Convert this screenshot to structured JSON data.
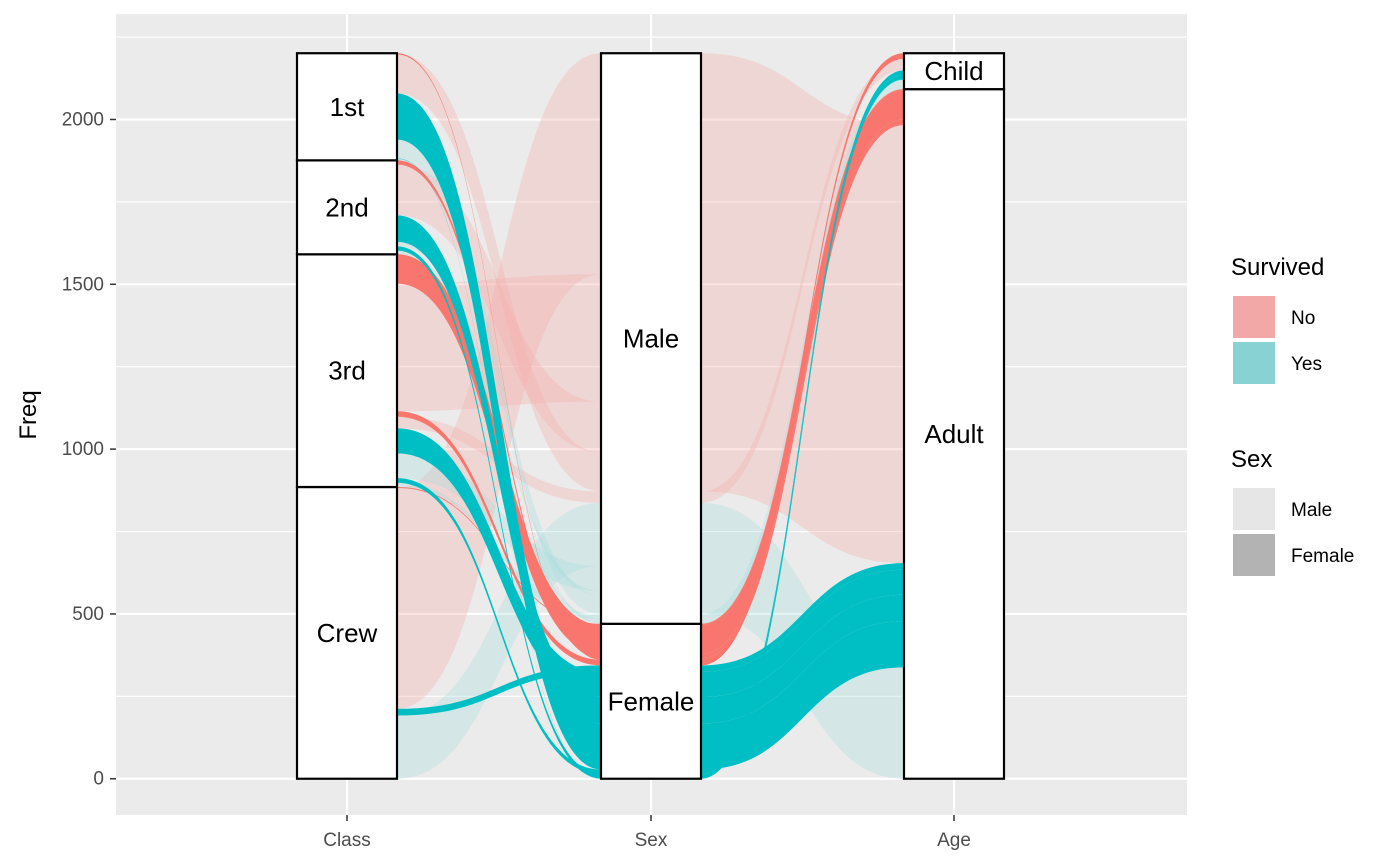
{
  "chart_data": {
    "type": "alluvial",
    "ylabel": "Freq",
    "axes": [
      "Class",
      "Sex",
      "Age"
    ],
    "y_ticks": [
      0,
      500,
      1000,
      1500,
      2000
    ],
    "ylim": [
      -110,
      2320
    ],
    "strata": {
      "Class": [
        {
          "label": "Crew",
          "value": 885
        },
        {
          "label": "3rd",
          "value": 706
        },
        {
          "label": "2nd",
          "value": 285
        },
        {
          "label": "1st",
          "value": 325
        }
      ],
      "Sex": [
        {
          "label": "Female",
          "value": 470
        },
        {
          "label": "Male",
          "value": 1731
        }
      ],
      "Age": [
        {
          "label": "Adult",
          "value": 2092
        },
        {
          "label": "Child",
          "value": 109
        }
      ]
    },
    "flows": [
      {
        "class": "1st",
        "sex": "Male",
        "age": "Child",
        "survived": "No",
        "freq": 0
      },
      {
        "class": "2nd",
        "sex": "Male",
        "age": "Child",
        "survived": "No",
        "freq": 0
      },
      {
        "class": "3rd",
        "sex": "Male",
        "age": "Child",
        "survived": "No",
        "freq": 35
      },
      {
        "class": "Crew",
        "sex": "Male",
        "age": "Child",
        "survived": "No",
        "freq": 0
      },
      {
        "class": "1st",
        "sex": "Female",
        "age": "Child",
        "survived": "No",
        "freq": 0
      },
      {
        "class": "2nd",
        "sex": "Female",
        "age": "Child",
        "survived": "No",
        "freq": 0
      },
      {
        "class": "3rd",
        "sex": "Female",
        "age": "Child",
        "survived": "No",
        "freq": 17
      },
      {
        "class": "Crew",
        "sex": "Female",
        "age": "Child",
        "survived": "No",
        "freq": 0
      },
      {
        "class": "1st",
        "sex": "Male",
        "age": "Adult",
        "survived": "No",
        "freq": 118
      },
      {
        "class": "2nd",
        "sex": "Male",
        "age": "Adult",
        "survived": "No",
        "freq": 154
      },
      {
        "class": "3rd",
        "sex": "Male",
        "age": "Adult",
        "survived": "No",
        "freq": 387
      },
      {
        "class": "Crew",
        "sex": "Male",
        "age": "Adult",
        "survived": "No",
        "freq": 670
      },
      {
        "class": "1st",
        "sex": "Female",
        "age": "Adult",
        "survived": "No",
        "freq": 4
      },
      {
        "class": "2nd",
        "sex": "Female",
        "age": "Adult",
        "survived": "No",
        "freq": 13
      },
      {
        "class": "3rd",
        "sex": "Female",
        "age": "Adult",
        "survived": "No",
        "freq": 89
      },
      {
        "class": "Crew",
        "sex": "Female",
        "age": "Adult",
        "survived": "No",
        "freq": 3
      },
      {
        "class": "1st",
        "sex": "Male",
        "age": "Child",
        "survived": "Yes",
        "freq": 5
      },
      {
        "class": "2nd",
        "sex": "Male",
        "age": "Child",
        "survived": "Yes",
        "freq": 11
      },
      {
        "class": "3rd",
        "sex": "Male",
        "age": "Child",
        "survived": "Yes",
        "freq": 13
      },
      {
        "class": "Crew",
        "sex": "Male",
        "age": "Child",
        "survived": "Yes",
        "freq": 0
      },
      {
        "class": "1st",
        "sex": "Female",
        "age": "Child",
        "survived": "Yes",
        "freq": 1
      },
      {
        "class": "2nd",
        "sex": "Female",
        "age": "Child",
        "survived": "Yes",
        "freq": 13
      },
      {
        "class": "3rd",
        "sex": "Female",
        "age": "Child",
        "survived": "Yes",
        "freq": 14
      },
      {
        "class": "Crew",
        "sex": "Female",
        "age": "Child",
        "survived": "Yes",
        "freq": 0
      },
      {
        "class": "1st",
        "sex": "Male",
        "age": "Adult",
        "survived": "Yes",
        "freq": 57
      },
      {
        "class": "2nd",
        "sex": "Male",
        "age": "Adult",
        "survived": "Yes",
        "freq": 14
      },
      {
        "class": "3rd",
        "sex": "Male",
        "age": "Adult",
        "survived": "Yes",
        "freq": 75
      },
      {
        "class": "Crew",
        "sex": "Male",
        "age": "Adult",
        "survived": "Yes",
        "freq": 192
      },
      {
        "class": "1st",
        "sex": "Female",
        "age": "Adult",
        "survived": "Yes",
        "freq": 140
      },
      {
        "class": "2nd",
        "sex": "Female",
        "age": "Adult",
        "survived": "Yes",
        "freq": 80
      },
      {
        "class": "3rd",
        "sex": "Female",
        "age": "Adult",
        "survived": "Yes",
        "freq": 76
      },
      {
        "class": "Crew",
        "sex": "Female",
        "age": "Adult",
        "survived": "Yes",
        "freq": 20
      }
    ],
    "legend": {
      "placement": "right",
      "groups": [
        {
          "title": "Survived",
          "entries": [
            {
              "label": "No",
              "color": "#F1A8A6"
            },
            {
              "label": "Yes",
              "color": "#88D2D4"
            }
          ]
        },
        {
          "title": "Sex",
          "entries": [
            {
              "label": "Male",
              "color": "#E6E6E6"
            },
            {
              "label": "Female",
              "color": "#B3B3B3"
            }
          ]
        }
      ]
    },
    "colors": {
      "no": "#F8766D",
      "yes": "#00BFC4",
      "panel": "#EBEBEB",
      "grid": "#FFFFFF"
    },
    "grid": true
  }
}
